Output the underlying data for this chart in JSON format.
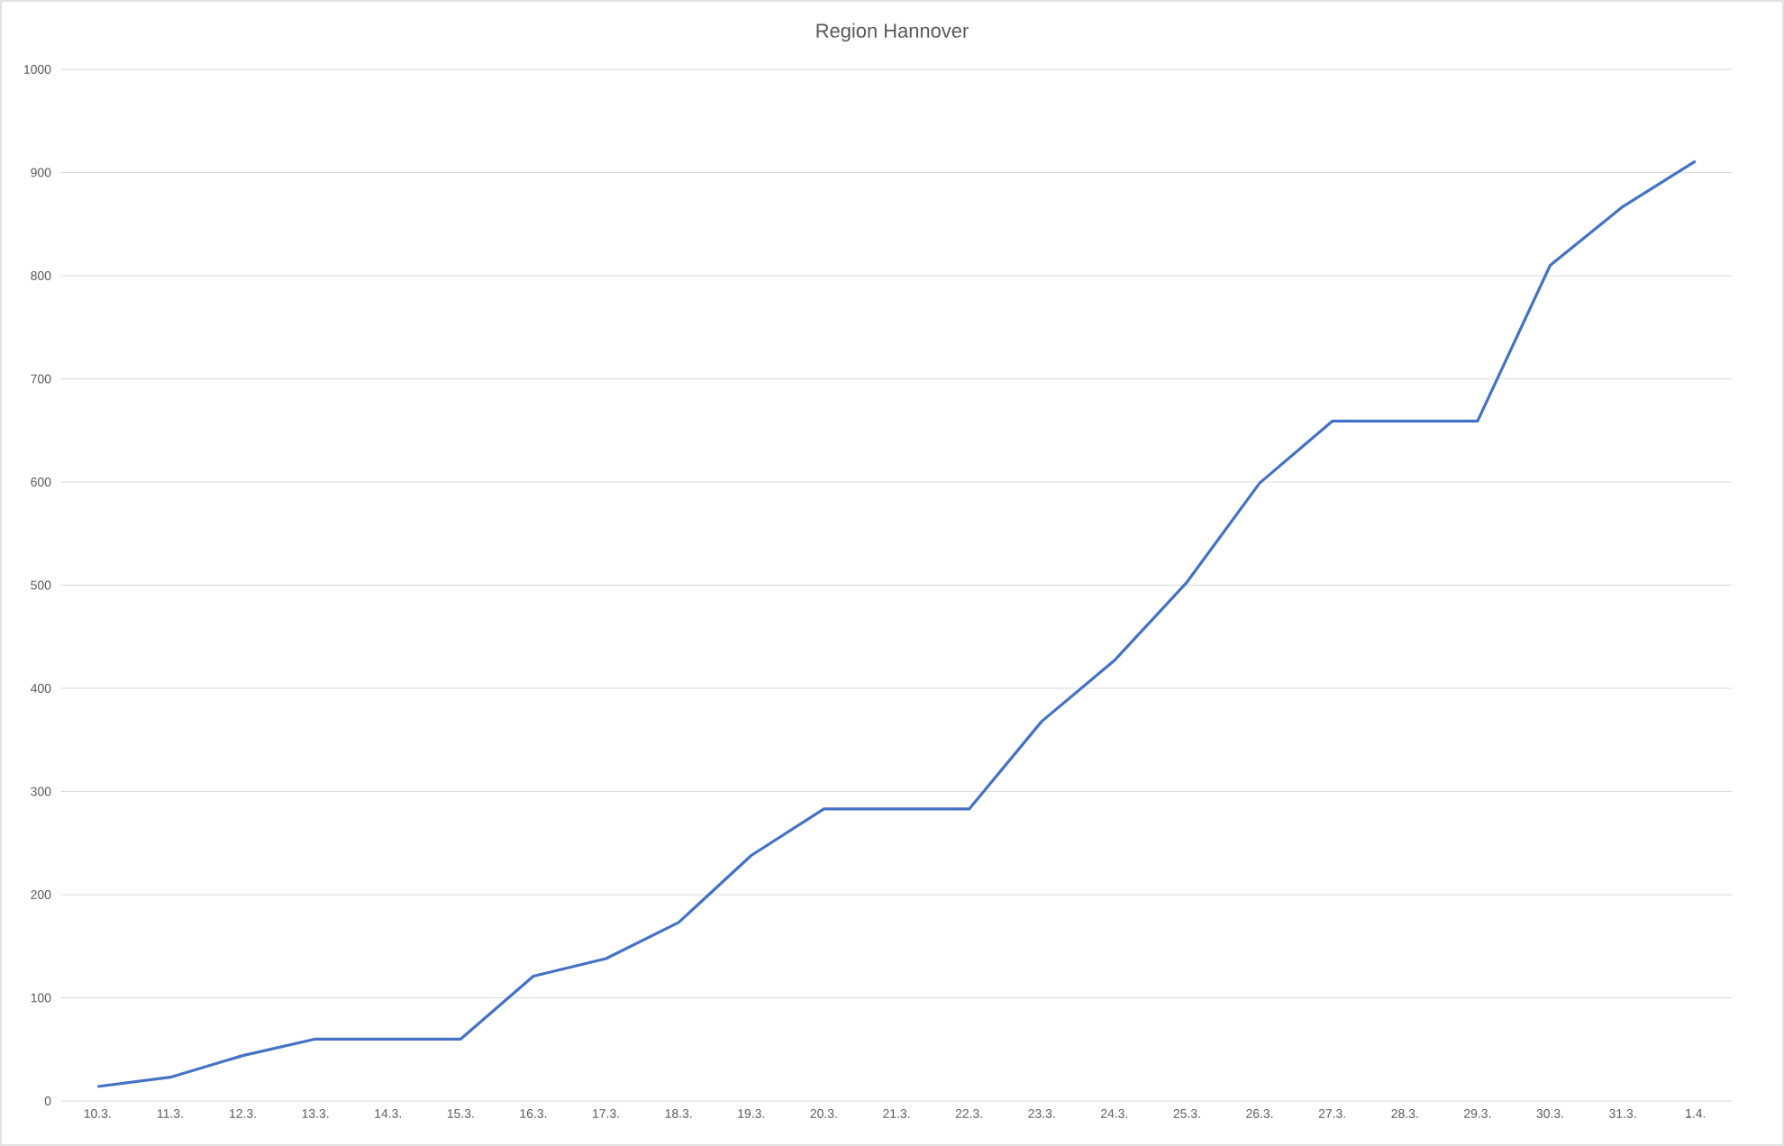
{
  "chart_data": {
    "type": "line",
    "title": "Region Hannover",
    "categories": [
      "10.3.",
      "11.3.",
      "12.3.",
      "13.3.",
      "14.3.",
      "15.3.",
      "16.3.",
      "17.3.",
      "18.3.",
      "19.3.",
      "20.3.",
      "21.3.",
      "22.3.",
      "23.3.",
      "24.3.",
      "25.3.",
      "26.3.",
      "27.3.",
      "28.3.",
      "29.3.",
      "30.3.",
      "31.3.",
      "1.4."
    ],
    "series": [
      {
        "color": "#4472c4",
        "values": [
          14,
          23,
          44,
          60,
          60,
          60,
          121,
          138,
          173,
          238,
          283,
          283,
          283,
          368,
          427,
          503,
          599,
          659,
          659,
          659,
          810,
          867,
          911
        ]
      }
    ],
    "ylim": [
      0,
      1000
    ],
    "yticks": [
      0,
      100,
      200,
      300,
      400,
      500,
      600,
      700,
      800,
      900,
      1000
    ],
    "grid": "y",
    "marker": "none",
    "line_style": "solid"
  }
}
